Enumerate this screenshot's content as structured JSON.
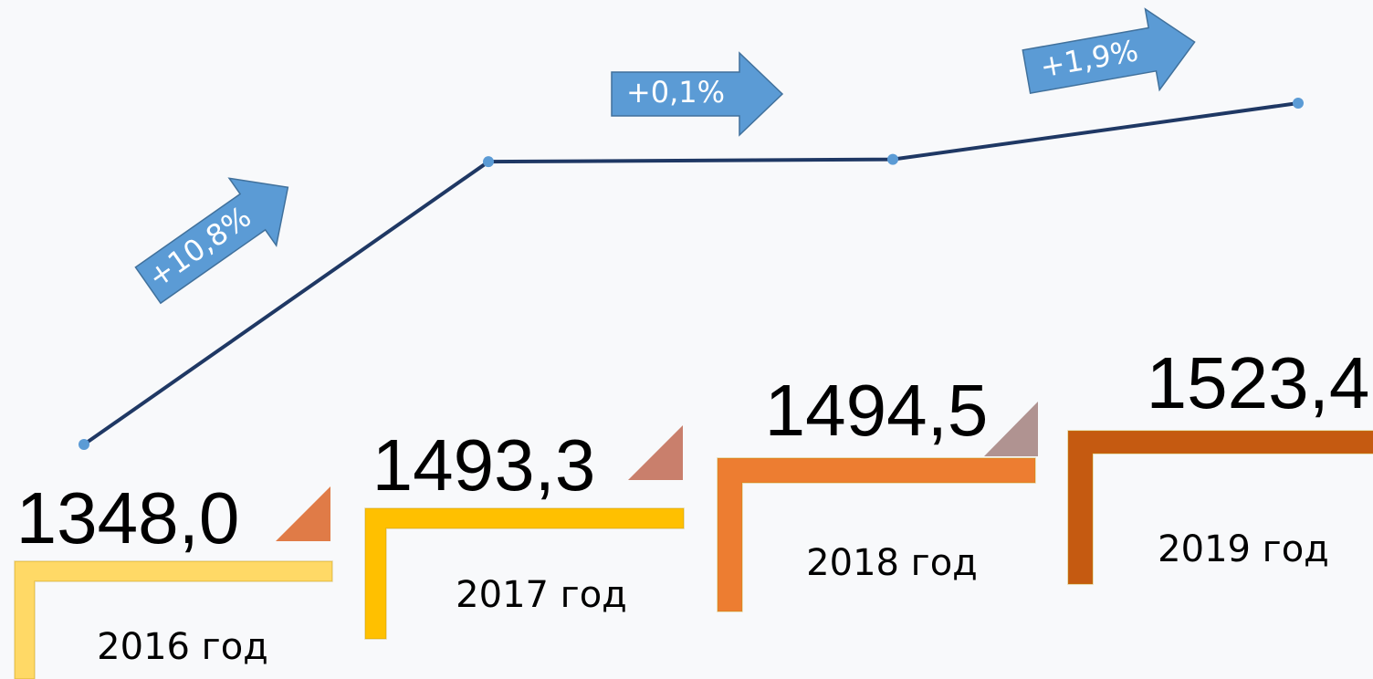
{
  "chart_data": {
    "type": "line",
    "categories": [
      "2016 год",
      "2017 год",
      "2018 год",
      "2019 год"
    ],
    "values": [
      1348.0,
      1493.3,
      1494.5,
      1523.4
    ],
    "value_labels": [
      "1348,0",
      "1493,3",
      "1494,5",
      "1523,4"
    ],
    "color": "#1f3864",
    "marker_color": "#5b9bd5",
    "step_colors": [
      "#ffd966",
      "#ffc000",
      "#ed7d31",
      "#c55a11"
    ],
    "annotations": [
      "+10,8%",
      "+0,1%",
      "+1,9%"
    ],
    "annotation_color": "#5b9bd5"
  }
}
